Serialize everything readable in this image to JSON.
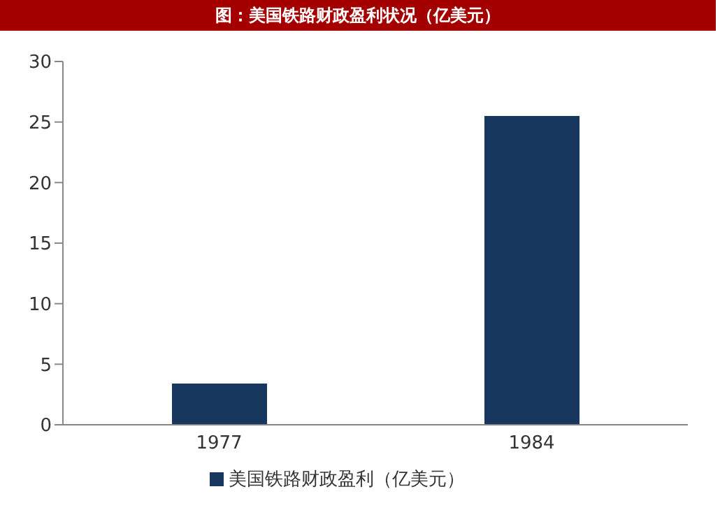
{
  "chart_data": {
    "type": "bar",
    "title": "图：美国铁路财政盈利状况（亿美元）",
    "categories": [
      "1977",
      "1984"
    ],
    "series": [
      {
        "name": "美国铁路财政盈利（亿美元）",
        "color": "#17375e",
        "values": [
          3.4,
          25.5
        ]
      }
    ],
    "ylim": [
      0,
      30
    ],
    "yticks": [
      0,
      5,
      10,
      15,
      20,
      25,
      30
    ],
    "grid": false,
    "legend": "bottom"
  }
}
